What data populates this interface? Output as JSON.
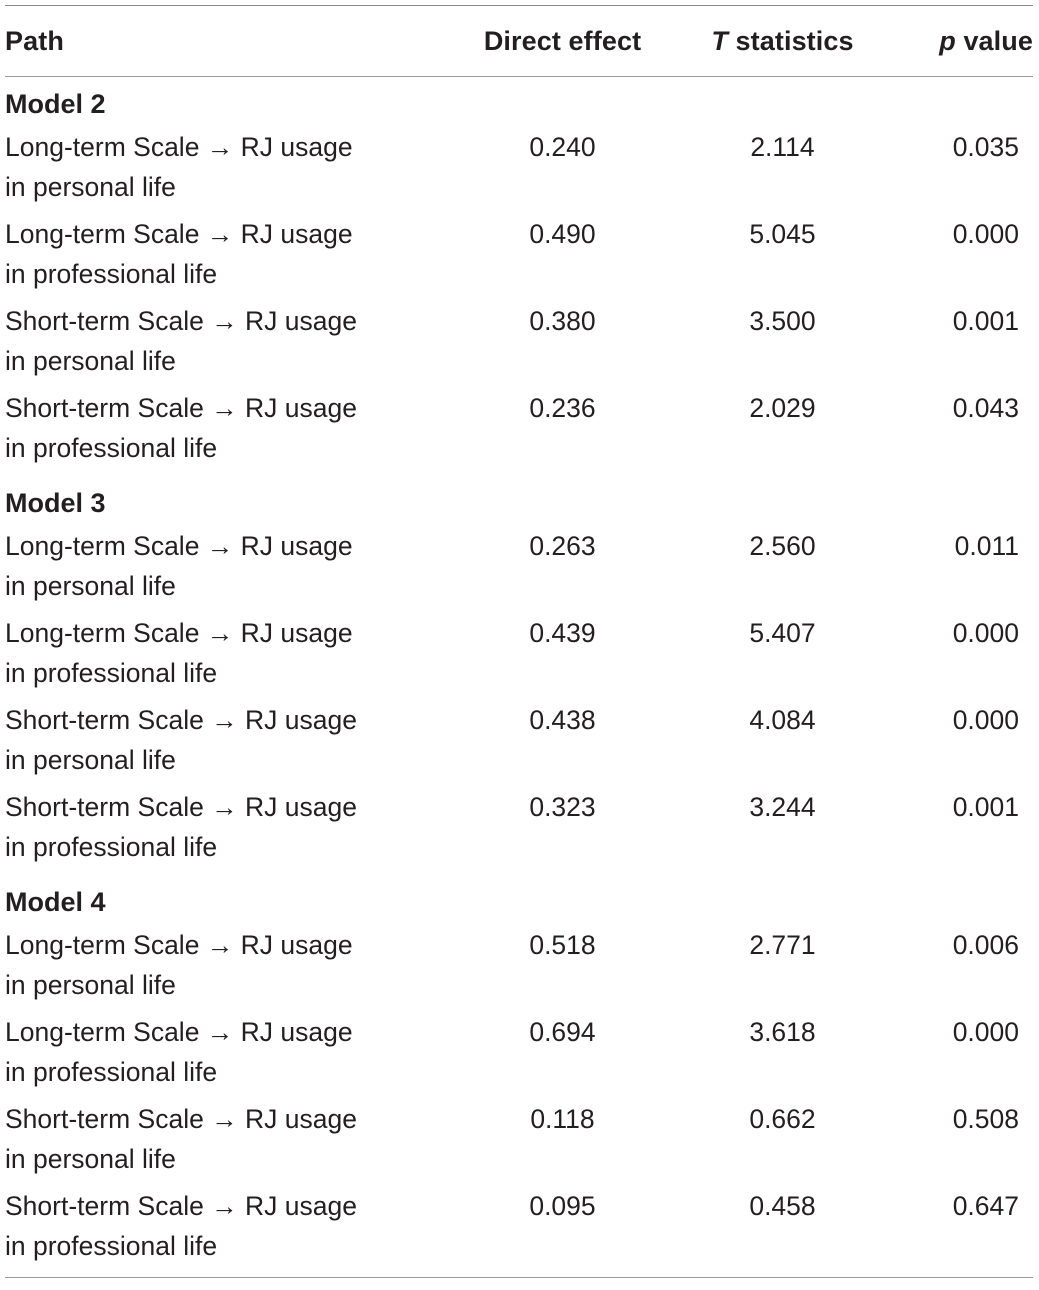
{
  "headers": {
    "path": "Path",
    "direct_effect": "Direct effect",
    "t_stat_italic": "T",
    "t_stat_rest": " statistics",
    "p_italic": "p",
    "p_rest": " value"
  },
  "models": [
    {
      "label": "Model 2",
      "rows": [
        {
          "path_line1": "Long-term Scale → RJ usage",
          "path_line2": "in personal life",
          "direct_effect": "0.240",
          "t_statistics": "2.114",
          "p_value": "0.035"
        },
        {
          "path_line1": "Long-term Scale → RJ usage",
          "path_line2": "in professional life",
          "direct_effect": "0.490",
          "t_statistics": "5.045",
          "p_value": "0.000"
        },
        {
          "path_line1": "Short-term Scale → RJ usage",
          "path_line2": "in personal life",
          "direct_effect": "0.380",
          "t_statistics": "3.500",
          "p_value": "0.001"
        },
        {
          "path_line1": "Short-term Scale → RJ usage",
          "path_line2": "in professional life",
          "direct_effect": "0.236",
          "t_statistics": "2.029",
          "p_value": "0.043"
        }
      ]
    },
    {
      "label": "Model 3",
      "rows": [
        {
          "path_line1": "Long-term Scale → RJ usage",
          "path_line2": "in personal life",
          "direct_effect": "0.263",
          "t_statistics": "2.560",
          "p_value": "0.011"
        },
        {
          "path_line1": "Long-term Scale → RJ usage",
          "path_line2": "in professional life",
          "direct_effect": "0.439",
          "t_statistics": "5.407",
          "p_value": "0.000"
        },
        {
          "path_line1": "Short-term Scale → RJ usage",
          "path_line2": "in personal life",
          "direct_effect": "0.438",
          "t_statistics": "4.084",
          "p_value": "0.000"
        },
        {
          "path_line1": "Short-term Scale → RJ usage",
          "path_line2": "in professional life",
          "direct_effect": "0.323",
          "t_statistics": "3.244",
          "p_value": "0.001"
        }
      ]
    },
    {
      "label": "Model 4",
      "rows": [
        {
          "path_line1": "Long-term Scale → RJ usage",
          "path_line2": "in personal life",
          "direct_effect": "0.518",
          "t_statistics": "2.771",
          "p_value": "0.006"
        },
        {
          "path_line1": "Long-term Scale → RJ usage",
          "path_line2": "in professional life",
          "direct_effect": "0.694",
          "t_statistics": "3.618",
          "p_value": "0.000"
        },
        {
          "path_line1": "Short-term Scale → RJ usage",
          "path_line2": "in personal life",
          "direct_effect": "0.118",
          "t_statistics": "0.662",
          "p_value": "0.508"
        },
        {
          "path_line1": "Short-term Scale → RJ usage",
          "path_line2": "in professional life",
          "direct_effect": "0.095",
          "t_statistics": "0.458",
          "p_value": "0.647"
        }
      ]
    }
  ]
}
